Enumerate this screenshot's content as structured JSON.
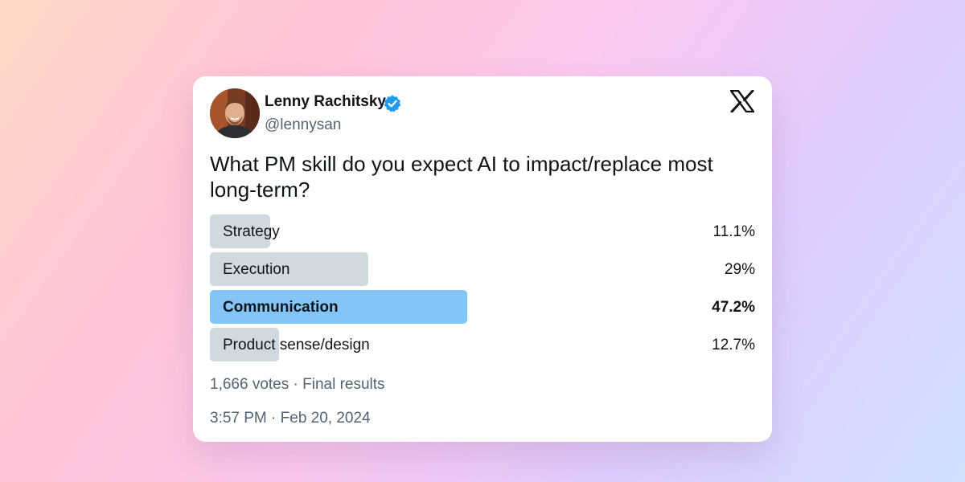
{
  "tweet": {
    "author_name": "Lenny Rachitsky",
    "handle": "@lennysan",
    "question": "What PM skill do you expect AI to impact/replace most long-term?",
    "timestamp": "3:57 PM · Feb 20, 2024"
  },
  "poll": {
    "options": [
      {
        "label": "Strategy",
        "percent_text": "11.1%",
        "percent": 11.1,
        "winner": false
      },
      {
        "label": "Execution",
        "percent_text": "29%",
        "percent": 29,
        "winner": false
      },
      {
        "label": "Communication",
        "percent_text": "47.2%",
        "percent": 47.2,
        "winner": true
      },
      {
        "label": "Product sense/design",
        "percent_text": "12.7%",
        "percent": 12.7,
        "winner": false
      }
    ],
    "summary": "1,666 votes · Final results"
  },
  "colors": {
    "bar": "#cfd9de",
    "winner_bar": "#83c5f7",
    "verified": "#1d9bf0",
    "text": "#0f1419",
    "muted": "#536471"
  },
  "icons": {
    "verified": "verified-badge-icon",
    "brand": "x-logo-icon"
  }
}
